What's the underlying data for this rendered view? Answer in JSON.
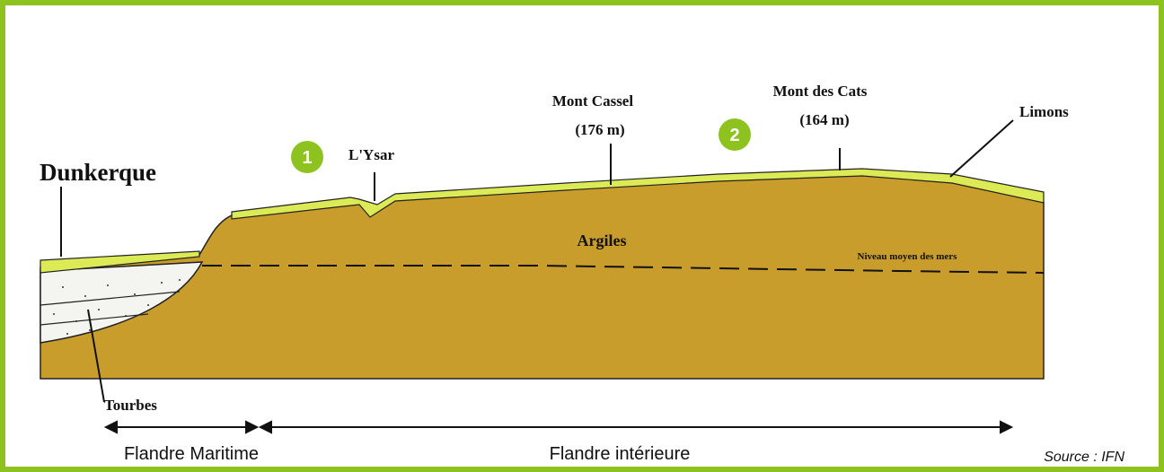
{
  "labels": {
    "dunkerque": "Dunkerque",
    "ysar": "L'Ysar",
    "mont_cassel": "Mont Cassel",
    "mont_cassel_alt": "(176 m)",
    "mont_des_cats": "Mont des Cats",
    "mont_des_cats_alt": "(164 m)",
    "limons": "Limons",
    "argiles": "Argiles",
    "niveau": "Niveau moyen des mers",
    "tourbes": "Tourbes"
  },
  "badges": [
    "1",
    "2"
  ],
  "regions": [
    "Flandre Maritime",
    "Flandre intérieure"
  ],
  "source": "Source : IFN"
}
